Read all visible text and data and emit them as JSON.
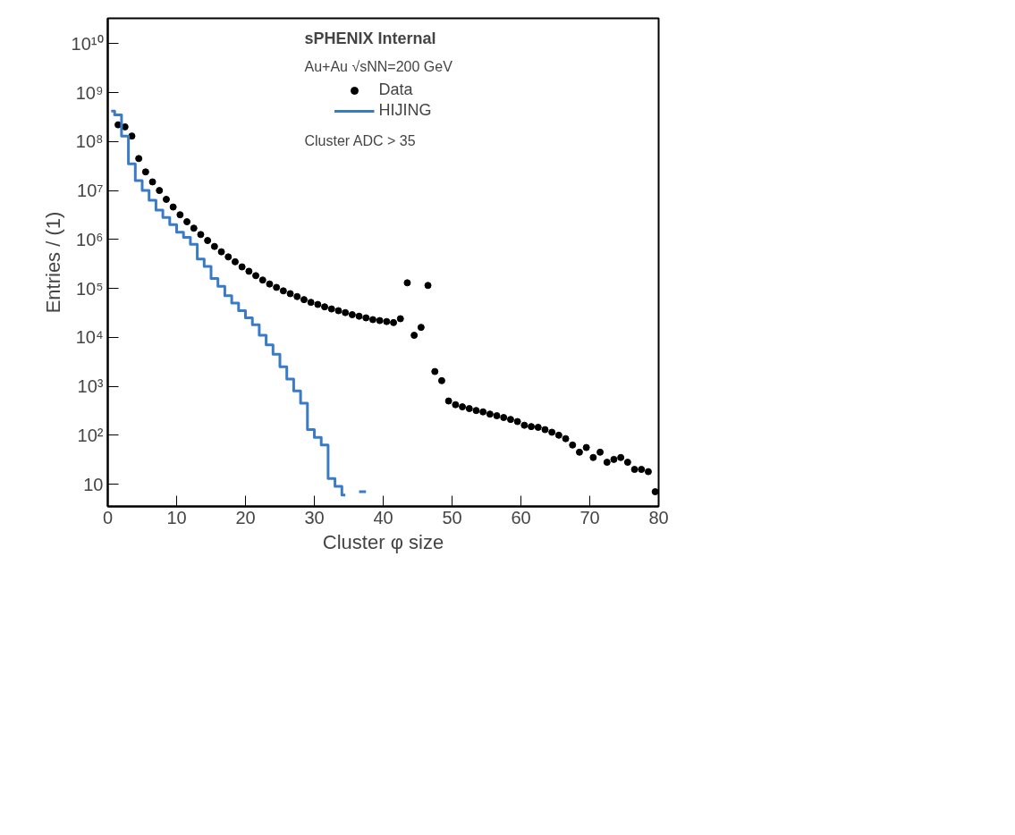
{
  "chart_data": {
    "type": "scatter",
    "xlabel": "Cluster φ size",
    "ylabel": "Entries / (1)",
    "annotations": [
      "sPHENIX Internal",
      "Au+Au √sNN=200 GeV",
      "Cluster ADC > 35"
    ],
    "log": "y",
    "grid": false,
    "legend": "top",
    "xlim": [
      0,
      80
    ],
    "xticks": [
      0,
      10,
      20,
      30,
      40,
      50,
      60,
      70,
      80
    ],
    "ylim": [
      3.5,
      33000000000
    ],
    "yticks": [
      10,
      {
        "value": 100,
        "label": "10²"
      },
      {
        "value": 1000,
        "label": "10³"
      },
      {
        "value": 10000,
        "label": "10⁴"
      },
      {
        "value": 100000,
        "label": "10⁵"
      },
      {
        "value": 1000000,
        "label": "10⁶"
      },
      {
        "value": 10000000,
        "label": "10⁷"
      },
      {
        "value": 100000000,
        "label": "10⁸"
      },
      {
        "value": 1000000000,
        "label": "10⁹"
      },
      {
        "value": 10000000000,
        "label": "10¹⁰"
      }
    ],
    "series": [
      {
        "name": "Data",
        "marker": "circle",
        "color": "#000000",
        "x": [
          1.5,
          2.5,
          3.5,
          4.5,
          5.5,
          6.5,
          7.5,
          8.5,
          9.5,
          10.5,
          11.5,
          12.5,
          13.5,
          14.5,
          15.5,
          16.5,
          17.5,
          18.5,
          19.5,
          20.5,
          21.5,
          22.5,
          23.5,
          24.5,
          25.5,
          26.5,
          27.5,
          28.5,
          29.5,
          30.5,
          31.5,
          32.5,
          33.5,
          34.5,
          35.5,
          36.5,
          37.5,
          38.5,
          39.5,
          40.5,
          41.5,
          42.5,
          43.5,
          44.5,
          45.5,
          46.5,
          47.5,
          48.5,
          49.5,
          50.5,
          51.5,
          52.5,
          53.5,
          54.5,
          55.5,
          56.5,
          57.5,
          58.5,
          59.5,
          60.5,
          61.5,
          62.5,
          63.5,
          64.5,
          65.5,
          66.5,
          67.5,
          68.5,
          69.5,
          70.5,
          71.5,
          72.5,
          73.5,
          74.5,
          75.5,
          76.5,
          77.5,
          78.5,
          79.5
        ],
        "values": [
          220000000,
          200000000,
          130000000,
          45000000,
          24000000,
          15000000,
          10000000,
          6600000,
          4600000,
          3200000,
          2300000,
          1700000,
          1260000,
          950000,
          720000,
          560000,
          440000,
          350000,
          275000,
          224000,
          182000,
          148000,
          123000,
          105000,
          89000,
          78000,
          68000,
          59000,
          52000,
          47000,
          42000,
          38000,
          35000,
          32000,
          29000,
          27000,
          25000,
          23000,
          22000,
          21000,
          20000,
          24000,
          130000,
          11000,
          16000,
          115000,
          2000,
          1300,
          500,
          420,
          380,
          350,
          320,
          300,
          270,
          250,
          230,
          210,
          190,
          160,
          150,
          145,
          130,
          115,
          100,
          85,
          63,
          45,
          56,
          35,
          45,
          28,
          32,
          35,
          28,
          20,
          20,
          18,
          7
        ]
      },
      {
        "name": "HIJING",
        "type": "step",
        "color": "#3a7bc8",
        "x": [
          0.5,
          1.5,
          2.5,
          3.5,
          4.5,
          5.5,
          6.5,
          7.5,
          8.5,
          9.5,
          10.5,
          11.5,
          12.5,
          13.5,
          14.5,
          15.5,
          16.5,
          17.5,
          18.5,
          19.5,
          20.5,
          21.5,
          22.5,
          23.5,
          24.5,
          25.5,
          26.5,
          27.5,
          28.5,
          29.5,
          30.5,
          31.5,
          32.5,
          33.5,
          34.5,
          35.5,
          36.5,
          37.5
        ],
        "values": [
          420000000,
          350000000,
          130000000,
          35000000,
          16000000,
          10000000,
          6300000,
          4000000,
          2800000,
          2000000,
          1400000,
          1100000,
          800000,
          400000,
          280000,
          160000,
          110000,
          71000,
          50000,
          35000,
          25000,
          18000,
          11000,
          7000,
          4500,
          2500,
          1400,
          800,
          450,
          130,
          90,
          63,
          13,
          9,
          6,
          null,
          7,
          7
        ]
      }
    ]
  }
}
